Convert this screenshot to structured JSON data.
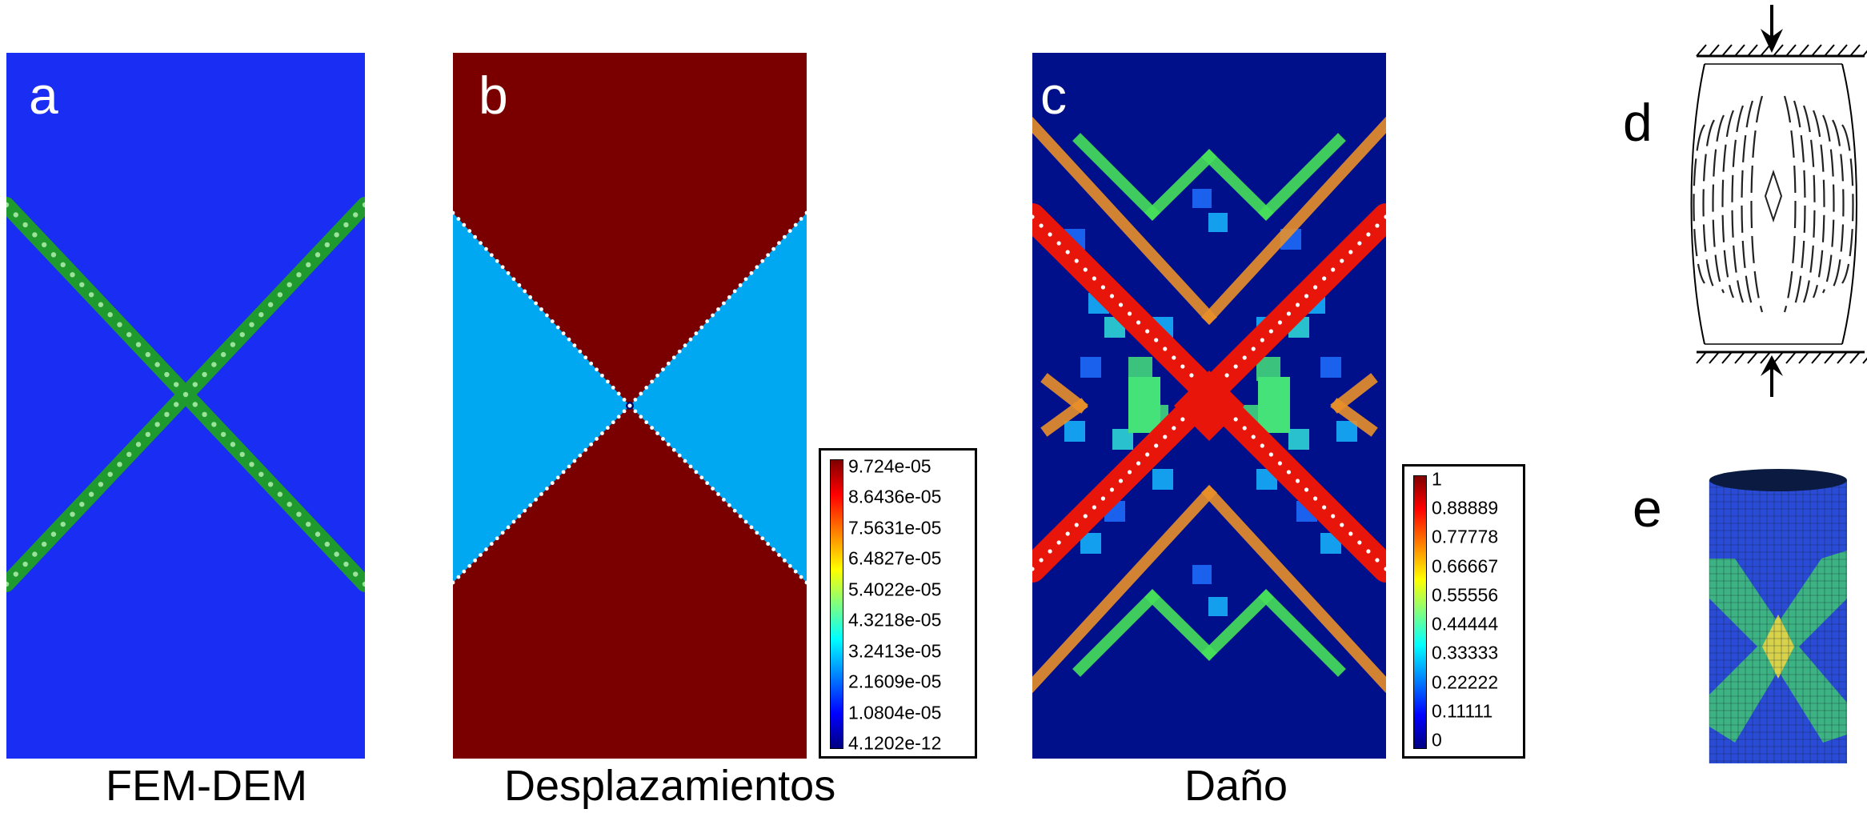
{
  "colors": {
    "fem_background": "#1a2df2",
    "fem_crack": "#1f9a2e",
    "disp_top_bottom": "#7a0000",
    "disp_left_right": "#00a8f2",
    "damage_background": "#00108a",
    "damage_high": "#e8150a"
  },
  "panels": {
    "a": {
      "letter": "a",
      "caption": "FEM-DEM"
    },
    "b": {
      "letter": "b",
      "caption": "Desplazamientos"
    },
    "c": {
      "letter": "c",
      "caption": "Daño"
    },
    "d": {
      "letter": "d"
    },
    "e": {
      "letter": "e"
    }
  },
  "legend_b": {
    "ticks": [
      "9.724e-05",
      "8.6436e-05",
      "7.5631e-05",
      "6.4827e-05",
      "5.4022e-05",
      "4.3218e-05",
      "3.2413e-05",
      "2.1609e-05",
      "1.0804e-05",
      "4.1202e-12"
    ]
  },
  "legend_c": {
    "ticks": [
      "1",
      "0.88889",
      "0.77778",
      "0.66667",
      "0.55556",
      "0.44444",
      "0.33333",
      "0.22222",
      "0.11111",
      "0"
    ]
  },
  "icons": {
    "load_arrow_top": "arrow-down-icon",
    "load_arrow_bottom": "arrow-up-icon"
  }
}
